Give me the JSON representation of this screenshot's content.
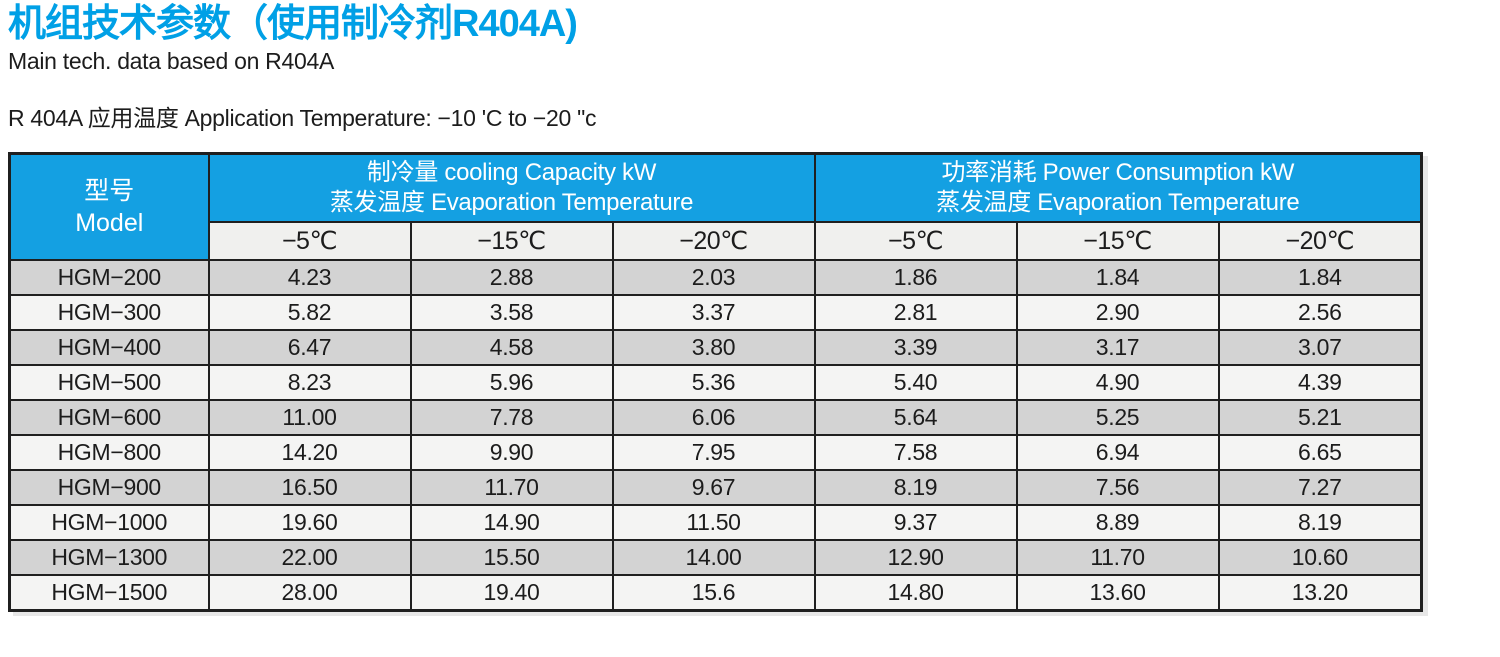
{
  "page": {
    "title": "机组技术参数（使用制冷剂R404A)",
    "subtitle": "Main tech. data based on R404A",
    "application_temperature": "R 404A 应用温度 Application Temperature: −10 'C to −20 \"c"
  },
  "colors": {
    "title_blue": "#00A0E6",
    "header_blue": "#14A0E2",
    "row_gray": "#d3d3d3",
    "row_light": "#f4f4f3",
    "subheader_bg": "#f0f0ee",
    "border": "#1f1f1f"
  },
  "table": {
    "model_header": {
      "line1": "型号",
      "line2": "Model"
    },
    "groups": [
      {
        "line1": "制冷量 cooling Capacity kW",
        "line2": "蒸发温度 Evaporation Temperature"
      },
      {
        "line1": "功率消耗 Power Consumption kW",
        "line2": "蒸发温度 Evaporation Temperature"
      }
    ],
    "sub_headers": [
      "−5℃",
      "−15℃",
      "−20℃"
    ],
    "rows": [
      {
        "model": "HGM−200",
        "values": [
          "4.23",
          "2.88",
          "2.03",
          "1.86",
          "1.84",
          "1.84"
        ]
      },
      {
        "model": "HGM−300",
        "values": [
          "5.82",
          "3.58",
          "3.37",
          "2.81",
          "2.90",
          "2.56"
        ]
      },
      {
        "model": "HGM−400",
        "values": [
          "6.47",
          "4.58",
          "3.80",
          "3.39",
          "3.17",
          "3.07"
        ]
      },
      {
        "model": "HGM−500",
        "values": [
          "8.23",
          "5.96",
          "5.36",
          "5.40",
          "4.90",
          "4.39"
        ]
      },
      {
        "model": "HGM−600",
        "values": [
          "11.00",
          "7.78",
          "6.06",
          "5.64",
          "5.25",
          "5.21"
        ]
      },
      {
        "model": "HGM−800",
        "values": [
          "14.20",
          "9.90",
          "7.95",
          "7.58",
          "6.94",
          "6.65"
        ]
      },
      {
        "model": "HGM−900",
        "values": [
          "16.50",
          "11.70",
          "9.67",
          "8.19",
          "7.56",
          "7.27"
        ]
      },
      {
        "model": "HGM−1000",
        "values": [
          "19.60",
          "14.90",
          "11.50",
          "9.37",
          "8.89",
          "8.19"
        ]
      },
      {
        "model": "HGM−1300",
        "values": [
          "22.00",
          "15.50",
          "14.00",
          "12.90",
          "11.70",
          "10.60"
        ]
      },
      {
        "model": "HGM−1500",
        "values": [
          "28.00",
          "19.40",
          "15.6",
          "14.80",
          "13.60",
          "13.20"
        ]
      }
    ]
  }
}
